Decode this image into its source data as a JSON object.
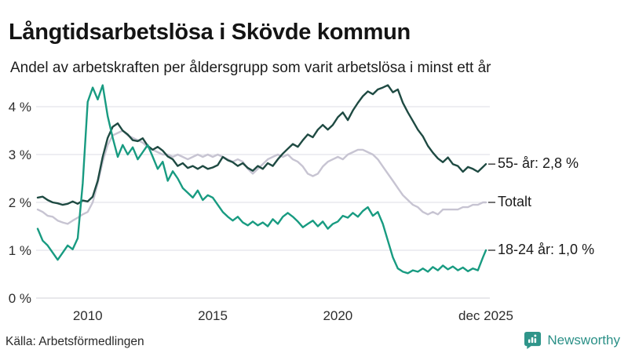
{
  "header": {
    "title": "Långtidsarbetslösa i Skövde kommun",
    "subtitle": "Andel av arbetskraften per åldersgrupp som varit arbetslösa i minst ett år"
  },
  "footer": {
    "source": "Källa: Arbetsförmedlingen",
    "brand": "Newsworthy",
    "brand_color": "#2b9087"
  },
  "chart_data": {
    "type": "line",
    "title": "Långtidsarbetslösa i Skövde kommun",
    "subtitle": "Andel av arbetskraften per åldersgrupp som varit arbetslösa i minst ett år",
    "grid": true,
    "legend_position": "right-end-labels",
    "x_axis": {
      "range": [
        2008,
        2025.92
      ],
      "ticks": [
        {
          "label": "2010",
          "year": 2010
        },
        {
          "label": "2015",
          "year": 2015
        },
        {
          "label": "2020",
          "year": 2020
        },
        {
          "label": "dec 2025",
          "year": 2025.92
        }
      ]
    },
    "y_axis": {
      "unit": "%",
      "range": [
        0,
        4.6
      ],
      "ticks": [
        {
          "label": "0 %",
          "value": 0
        },
        {
          "label": "1 %",
          "value": 1
        },
        {
          "label": "2 %",
          "value": 2
        },
        {
          "label": "3 %",
          "value": 3
        },
        {
          "label": "4 %",
          "value": 4
        }
      ]
    },
    "grid_color": "#e4e4ea",
    "axis_line_color": "#d9d9df",
    "series": [
      {
        "name": "Totalt",
        "label": "Totalt",
        "color": "#c7c4d2",
        "end_value": 2.0,
        "points": [
          [
            2008,
            1.85
          ],
          [
            2008.2,
            1.8
          ],
          [
            2008.4,
            1.72
          ],
          [
            2008.6,
            1.7
          ],
          [
            2008.8,
            1.62
          ],
          [
            2009,
            1.58
          ],
          [
            2009.2,
            1.55
          ],
          [
            2009.4,
            1.62
          ],
          [
            2009.6,
            1.68
          ],
          [
            2009.8,
            1.75
          ],
          [
            2010,
            1.8
          ],
          [
            2010.2,
            2.0
          ],
          [
            2010.4,
            2.4
          ],
          [
            2010.6,
            2.85
          ],
          [
            2010.8,
            3.2
          ],
          [
            2011,
            3.4
          ],
          [
            2011.2,
            3.45
          ],
          [
            2011.4,
            3.5
          ],
          [
            2011.6,
            3.4
          ],
          [
            2011.8,
            3.35
          ],
          [
            2012,
            3.3
          ],
          [
            2012.2,
            3.25
          ],
          [
            2012.4,
            3.15
          ],
          [
            2012.6,
            3.1
          ],
          [
            2012.8,
            3.05
          ],
          [
            2013,
            3.0
          ],
          [
            2013.2,
            3.0
          ],
          [
            2013.4,
            2.95
          ],
          [
            2013.6,
            3.0
          ],
          [
            2013.8,
            2.95
          ],
          [
            2014,
            2.9
          ],
          [
            2014.2,
            2.95
          ],
          [
            2014.4,
            3.0
          ],
          [
            2014.6,
            2.95
          ],
          [
            2014.8,
            3.0
          ],
          [
            2015,
            2.95
          ],
          [
            2015.2,
            3.0
          ],
          [
            2015.4,
            2.95
          ],
          [
            2015.6,
            2.9
          ],
          [
            2015.8,
            2.85
          ],
          [
            2016,
            2.9
          ],
          [
            2016.2,
            2.85
          ],
          [
            2016.4,
            2.7
          ],
          [
            2016.6,
            2.6
          ],
          [
            2016.8,
            2.7
          ],
          [
            2017,
            2.8
          ],
          [
            2017.2,
            2.9
          ],
          [
            2017.4,
            2.95
          ],
          [
            2017.6,
            3.0
          ],
          [
            2017.8,
            2.95
          ],
          [
            2018,
            3.0
          ],
          [
            2018.2,
            2.9
          ],
          [
            2018.4,
            2.85
          ],
          [
            2018.6,
            2.75
          ],
          [
            2018.8,
            2.6
          ],
          [
            2019,
            2.55
          ],
          [
            2019.2,
            2.6
          ],
          [
            2019.4,
            2.75
          ],
          [
            2019.6,
            2.85
          ],
          [
            2019.8,
            2.9
          ],
          [
            2020,
            2.95
          ],
          [
            2020.2,
            2.9
          ],
          [
            2020.4,
            3.0
          ],
          [
            2020.6,
            3.05
          ],
          [
            2020.8,
            3.1
          ],
          [
            2021,
            3.1
          ],
          [
            2021.2,
            3.05
          ],
          [
            2021.4,
            3.0
          ],
          [
            2021.6,
            2.9
          ],
          [
            2021.8,
            2.75
          ],
          [
            2022,
            2.6
          ],
          [
            2022.2,
            2.45
          ],
          [
            2022.4,
            2.3
          ],
          [
            2022.6,
            2.15
          ],
          [
            2022.8,
            2.05
          ],
          [
            2023,
            1.95
          ],
          [
            2023.2,
            1.9
          ],
          [
            2023.4,
            1.8
          ],
          [
            2023.6,
            1.75
          ],
          [
            2023.8,
            1.8
          ],
          [
            2024,
            1.75
          ],
          [
            2024.2,
            1.85
          ],
          [
            2024.4,
            1.85
          ],
          [
            2024.6,
            1.85
          ],
          [
            2024.8,
            1.85
          ],
          [
            2025,
            1.9
          ],
          [
            2025.2,
            1.9
          ],
          [
            2025.4,
            1.95
          ],
          [
            2025.6,
            1.95
          ],
          [
            2025.8,
            2.0
          ],
          [
            2025.92,
            2.0
          ]
        ]
      },
      {
        "name": "55- år",
        "label": "55- år: 2,8 %",
        "color": "#1e4a42",
        "end_value": 2.8,
        "points": [
          [
            2008,
            2.1
          ],
          [
            2008.2,
            2.12
          ],
          [
            2008.4,
            2.05
          ],
          [
            2008.6,
            2.0
          ],
          [
            2008.8,
            1.98
          ],
          [
            2009,
            1.95
          ],
          [
            2009.2,
            1.97
          ],
          [
            2009.4,
            2.02
          ],
          [
            2009.6,
            1.97
          ],
          [
            2009.8,
            2.04
          ],
          [
            2010,
            2.02
          ],
          [
            2010.2,
            2.12
          ],
          [
            2010.4,
            2.45
          ],
          [
            2010.6,
            2.95
          ],
          [
            2010.8,
            3.35
          ],
          [
            2011,
            3.58
          ],
          [
            2011.2,
            3.65
          ],
          [
            2011.4,
            3.5
          ],
          [
            2011.6,
            3.42
          ],
          [
            2011.8,
            3.3
          ],
          [
            2012,
            3.28
          ],
          [
            2012.2,
            3.34
          ],
          [
            2012.4,
            3.18
          ],
          [
            2012.6,
            3.1
          ],
          [
            2012.8,
            3.16
          ],
          [
            2013,
            3.08
          ],
          [
            2013.2,
            2.96
          ],
          [
            2013.4,
            2.9
          ],
          [
            2013.6,
            2.76
          ],
          [
            2013.8,
            2.82
          ],
          [
            2014,
            2.72
          ],
          [
            2014.2,
            2.76
          ],
          [
            2014.4,
            2.7
          ],
          [
            2014.6,
            2.76
          ],
          [
            2014.8,
            2.7
          ],
          [
            2015,
            2.73
          ],
          [
            2015.2,
            2.78
          ],
          [
            2015.4,
            2.95
          ],
          [
            2015.6,
            2.88
          ],
          [
            2015.8,
            2.84
          ],
          [
            2016,
            2.76
          ],
          [
            2016.2,
            2.82
          ],
          [
            2016.4,
            2.72
          ],
          [
            2016.6,
            2.66
          ],
          [
            2016.8,
            2.76
          ],
          [
            2017,
            2.7
          ],
          [
            2017.2,
            2.82
          ],
          [
            2017.4,
            2.76
          ],
          [
            2017.6,
            2.9
          ],
          [
            2017.8,
            3.02
          ],
          [
            2018,
            3.12
          ],
          [
            2018.2,
            3.22
          ],
          [
            2018.4,
            3.16
          ],
          [
            2018.6,
            3.3
          ],
          [
            2018.8,
            3.42
          ],
          [
            2019,
            3.36
          ],
          [
            2019.2,
            3.52
          ],
          [
            2019.4,
            3.62
          ],
          [
            2019.6,
            3.52
          ],
          [
            2019.8,
            3.62
          ],
          [
            2020,
            3.78
          ],
          [
            2020.2,
            3.88
          ],
          [
            2020.4,
            3.72
          ],
          [
            2020.6,
            3.92
          ],
          [
            2020.8,
            4.08
          ],
          [
            2021,
            4.22
          ],
          [
            2021.2,
            4.32
          ],
          [
            2021.4,
            4.26
          ],
          [
            2021.6,
            4.36
          ],
          [
            2021.8,
            4.4
          ],
          [
            2022,
            4.45
          ],
          [
            2022.2,
            4.3
          ],
          [
            2022.4,
            4.36
          ],
          [
            2022.6,
            4.08
          ],
          [
            2022.8,
            3.88
          ],
          [
            2023,
            3.7
          ],
          [
            2023.2,
            3.52
          ],
          [
            2023.4,
            3.38
          ],
          [
            2023.6,
            3.18
          ],
          [
            2023.8,
            3.04
          ],
          [
            2024,
            2.92
          ],
          [
            2024.2,
            2.84
          ],
          [
            2024.4,
            2.94
          ],
          [
            2024.6,
            2.8
          ],
          [
            2024.8,
            2.76
          ],
          [
            2025,
            2.64
          ],
          [
            2025.2,
            2.74
          ],
          [
            2025.4,
            2.7
          ],
          [
            2025.6,
            2.64
          ],
          [
            2025.8,
            2.74
          ],
          [
            2025.92,
            2.8
          ]
        ]
      },
      {
        "name": "18-24 år",
        "label": "18-24 år: 1,0 %",
        "color": "#189b81",
        "end_value": 1.0,
        "points": [
          [
            2008,
            1.45
          ],
          [
            2008.2,
            1.2
          ],
          [
            2008.4,
            1.1
          ],
          [
            2008.6,
            0.95
          ],
          [
            2008.8,
            0.8
          ],
          [
            2009,
            0.95
          ],
          [
            2009.2,
            1.1
          ],
          [
            2009.4,
            1.02
          ],
          [
            2009.6,
            1.25
          ],
          [
            2009.8,
            2.4
          ],
          [
            2010,
            4.1
          ],
          [
            2010.2,
            4.4
          ],
          [
            2010.4,
            4.15
          ],
          [
            2010.6,
            4.45
          ],
          [
            2010.8,
            3.8
          ],
          [
            2011,
            3.35
          ],
          [
            2011.2,
            2.95
          ],
          [
            2011.4,
            3.2
          ],
          [
            2011.6,
            3.0
          ],
          [
            2011.8,
            3.15
          ],
          [
            2012,
            2.9
          ],
          [
            2012.2,
            3.05
          ],
          [
            2012.4,
            3.2
          ],
          [
            2012.6,
            2.95
          ],
          [
            2012.8,
            2.7
          ],
          [
            2013,
            2.85
          ],
          [
            2013.2,
            2.45
          ],
          [
            2013.4,
            2.65
          ],
          [
            2013.6,
            2.5
          ],
          [
            2013.8,
            2.3
          ],
          [
            2014,
            2.2
          ],
          [
            2014.2,
            2.1
          ],
          [
            2014.4,
            2.25
          ],
          [
            2014.6,
            2.05
          ],
          [
            2014.8,
            2.15
          ],
          [
            2015,
            2.1
          ],
          [
            2015.2,
            1.95
          ],
          [
            2015.4,
            1.8
          ],
          [
            2015.6,
            1.7
          ],
          [
            2015.8,
            1.62
          ],
          [
            2016,
            1.7
          ],
          [
            2016.2,
            1.58
          ],
          [
            2016.4,
            1.52
          ],
          [
            2016.6,
            1.6
          ],
          [
            2016.8,
            1.52
          ],
          [
            2017,
            1.58
          ],
          [
            2017.2,
            1.5
          ],
          [
            2017.4,
            1.65
          ],
          [
            2017.6,
            1.55
          ],
          [
            2017.8,
            1.7
          ],
          [
            2018,
            1.78
          ],
          [
            2018.2,
            1.7
          ],
          [
            2018.4,
            1.6
          ],
          [
            2018.6,
            1.48
          ],
          [
            2018.8,
            1.55
          ],
          [
            2019,
            1.62
          ],
          [
            2019.2,
            1.5
          ],
          [
            2019.4,
            1.6
          ],
          [
            2019.6,
            1.45
          ],
          [
            2019.8,
            1.55
          ],
          [
            2020,
            1.6
          ],
          [
            2020.2,
            1.72
          ],
          [
            2020.4,
            1.68
          ],
          [
            2020.6,
            1.78
          ],
          [
            2020.8,
            1.7
          ],
          [
            2021,
            1.82
          ],
          [
            2021.2,
            1.9
          ],
          [
            2021.4,
            1.72
          ],
          [
            2021.6,
            1.8
          ],
          [
            2021.8,
            1.55
          ],
          [
            2022,
            1.2
          ],
          [
            2022.2,
            0.85
          ],
          [
            2022.4,
            0.62
          ],
          [
            2022.6,
            0.55
          ],
          [
            2022.8,
            0.52
          ],
          [
            2023,
            0.58
          ],
          [
            2023.2,
            0.55
          ],
          [
            2023.4,
            0.62
          ],
          [
            2023.6,
            0.55
          ],
          [
            2023.8,
            0.65
          ],
          [
            2024,
            0.58
          ],
          [
            2024.2,
            0.68
          ],
          [
            2024.4,
            0.6
          ],
          [
            2024.6,
            0.66
          ],
          [
            2024.8,
            0.58
          ],
          [
            2025,
            0.64
          ],
          [
            2025.2,
            0.56
          ],
          [
            2025.4,
            0.62
          ],
          [
            2025.6,
            0.58
          ],
          [
            2025.8,
            0.85
          ],
          [
            2025.92,
            1.0
          ]
        ]
      }
    ],
    "source": "Källa: Arbetsförmedlingen"
  }
}
